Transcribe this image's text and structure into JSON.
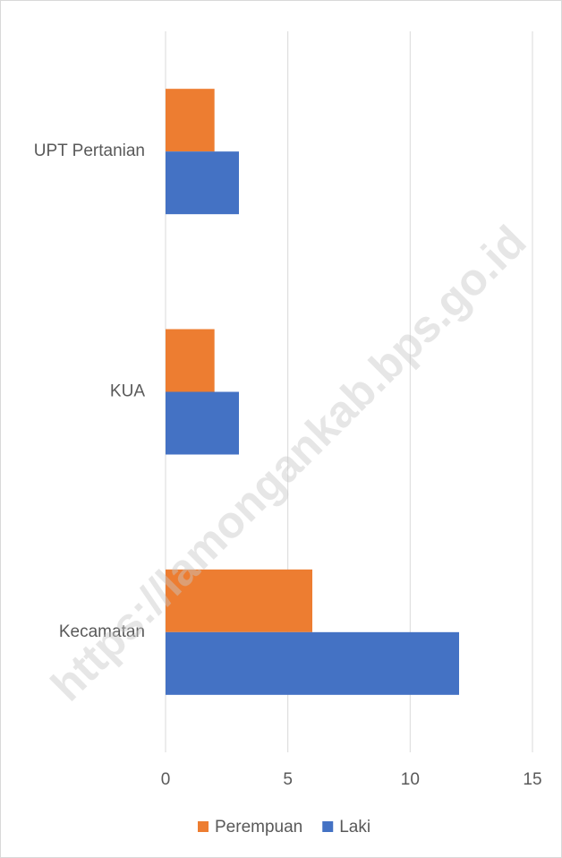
{
  "chart_data": {
    "type": "barh",
    "categories": [
      "Kecamatan",
      "KUA",
      "UPT Pertanian"
    ],
    "series": [
      {
        "name": "Perempuan",
        "color": "#ed7d31",
        "values": [
          6,
          2,
          2
        ]
      },
      {
        "name": "Laki",
        "color": "#4472c4",
        "values": [
          12,
          3,
          3
        ]
      }
    ],
    "xlim": [
      0,
      15
    ],
    "xticks": [
      0,
      5,
      10,
      15
    ],
    "grid": true,
    "legend": "bottom",
    "watermark": "https://lamongankab.bps.go.id"
  }
}
